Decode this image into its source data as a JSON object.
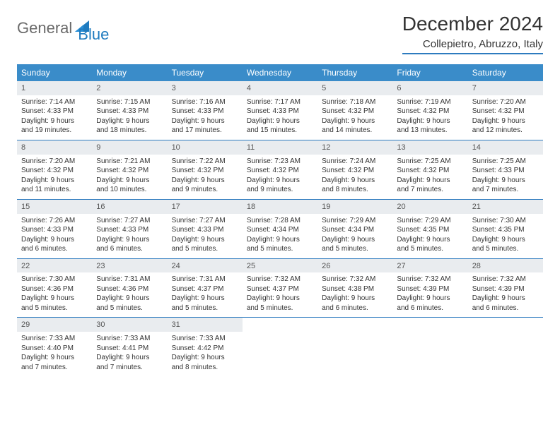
{
  "logo": {
    "text1": "General",
    "text2": "Blue"
  },
  "calendar": {
    "title": "December 2024",
    "location": "Collepietro, Abruzzo, Italy",
    "colors": {
      "header_bg": "#3a8cc9",
      "header_text": "#ffffff",
      "daynum_bg": "#e9ecef",
      "rule": "#2d7bbf",
      "body_text": "#333333"
    },
    "day_names": [
      "Sunday",
      "Monday",
      "Tuesday",
      "Wednesday",
      "Thursday",
      "Friday",
      "Saturday"
    ],
    "days": [
      {
        "n": "1",
        "sunrise": "Sunrise: 7:14 AM",
        "sunset": "Sunset: 4:33 PM",
        "d1": "Daylight: 9 hours",
        "d2": "and 19 minutes."
      },
      {
        "n": "2",
        "sunrise": "Sunrise: 7:15 AM",
        "sunset": "Sunset: 4:33 PM",
        "d1": "Daylight: 9 hours",
        "d2": "and 18 minutes."
      },
      {
        "n": "3",
        "sunrise": "Sunrise: 7:16 AM",
        "sunset": "Sunset: 4:33 PM",
        "d1": "Daylight: 9 hours",
        "d2": "and 17 minutes."
      },
      {
        "n": "4",
        "sunrise": "Sunrise: 7:17 AM",
        "sunset": "Sunset: 4:33 PM",
        "d1": "Daylight: 9 hours",
        "d2": "and 15 minutes."
      },
      {
        "n": "5",
        "sunrise": "Sunrise: 7:18 AM",
        "sunset": "Sunset: 4:32 PM",
        "d1": "Daylight: 9 hours",
        "d2": "and 14 minutes."
      },
      {
        "n": "6",
        "sunrise": "Sunrise: 7:19 AM",
        "sunset": "Sunset: 4:32 PM",
        "d1": "Daylight: 9 hours",
        "d2": "and 13 minutes."
      },
      {
        "n": "7",
        "sunrise": "Sunrise: 7:20 AM",
        "sunset": "Sunset: 4:32 PM",
        "d1": "Daylight: 9 hours",
        "d2": "and 12 minutes."
      },
      {
        "n": "8",
        "sunrise": "Sunrise: 7:20 AM",
        "sunset": "Sunset: 4:32 PM",
        "d1": "Daylight: 9 hours",
        "d2": "and 11 minutes."
      },
      {
        "n": "9",
        "sunrise": "Sunrise: 7:21 AM",
        "sunset": "Sunset: 4:32 PM",
        "d1": "Daylight: 9 hours",
        "d2": "and 10 minutes."
      },
      {
        "n": "10",
        "sunrise": "Sunrise: 7:22 AM",
        "sunset": "Sunset: 4:32 PM",
        "d1": "Daylight: 9 hours",
        "d2": "and 9 minutes."
      },
      {
        "n": "11",
        "sunrise": "Sunrise: 7:23 AM",
        "sunset": "Sunset: 4:32 PM",
        "d1": "Daylight: 9 hours",
        "d2": "and 9 minutes."
      },
      {
        "n": "12",
        "sunrise": "Sunrise: 7:24 AM",
        "sunset": "Sunset: 4:32 PM",
        "d1": "Daylight: 9 hours",
        "d2": "and 8 minutes."
      },
      {
        "n": "13",
        "sunrise": "Sunrise: 7:25 AM",
        "sunset": "Sunset: 4:32 PM",
        "d1": "Daylight: 9 hours",
        "d2": "and 7 minutes."
      },
      {
        "n": "14",
        "sunrise": "Sunrise: 7:25 AM",
        "sunset": "Sunset: 4:33 PM",
        "d1": "Daylight: 9 hours",
        "d2": "and 7 minutes."
      },
      {
        "n": "15",
        "sunrise": "Sunrise: 7:26 AM",
        "sunset": "Sunset: 4:33 PM",
        "d1": "Daylight: 9 hours",
        "d2": "and 6 minutes."
      },
      {
        "n": "16",
        "sunrise": "Sunrise: 7:27 AM",
        "sunset": "Sunset: 4:33 PM",
        "d1": "Daylight: 9 hours",
        "d2": "and 6 minutes."
      },
      {
        "n": "17",
        "sunrise": "Sunrise: 7:27 AM",
        "sunset": "Sunset: 4:33 PM",
        "d1": "Daylight: 9 hours",
        "d2": "and 5 minutes."
      },
      {
        "n": "18",
        "sunrise": "Sunrise: 7:28 AM",
        "sunset": "Sunset: 4:34 PM",
        "d1": "Daylight: 9 hours",
        "d2": "and 5 minutes."
      },
      {
        "n": "19",
        "sunrise": "Sunrise: 7:29 AM",
        "sunset": "Sunset: 4:34 PM",
        "d1": "Daylight: 9 hours",
        "d2": "and 5 minutes."
      },
      {
        "n": "20",
        "sunrise": "Sunrise: 7:29 AM",
        "sunset": "Sunset: 4:35 PM",
        "d1": "Daylight: 9 hours",
        "d2": "and 5 minutes."
      },
      {
        "n": "21",
        "sunrise": "Sunrise: 7:30 AM",
        "sunset": "Sunset: 4:35 PM",
        "d1": "Daylight: 9 hours",
        "d2": "and 5 minutes."
      },
      {
        "n": "22",
        "sunrise": "Sunrise: 7:30 AM",
        "sunset": "Sunset: 4:36 PM",
        "d1": "Daylight: 9 hours",
        "d2": "and 5 minutes."
      },
      {
        "n": "23",
        "sunrise": "Sunrise: 7:31 AM",
        "sunset": "Sunset: 4:36 PM",
        "d1": "Daylight: 9 hours",
        "d2": "and 5 minutes."
      },
      {
        "n": "24",
        "sunrise": "Sunrise: 7:31 AM",
        "sunset": "Sunset: 4:37 PM",
        "d1": "Daylight: 9 hours",
        "d2": "and 5 minutes."
      },
      {
        "n": "25",
        "sunrise": "Sunrise: 7:32 AM",
        "sunset": "Sunset: 4:37 PM",
        "d1": "Daylight: 9 hours",
        "d2": "and 5 minutes."
      },
      {
        "n": "26",
        "sunrise": "Sunrise: 7:32 AM",
        "sunset": "Sunset: 4:38 PM",
        "d1": "Daylight: 9 hours",
        "d2": "and 6 minutes."
      },
      {
        "n": "27",
        "sunrise": "Sunrise: 7:32 AM",
        "sunset": "Sunset: 4:39 PM",
        "d1": "Daylight: 9 hours",
        "d2": "and 6 minutes."
      },
      {
        "n": "28",
        "sunrise": "Sunrise: 7:32 AM",
        "sunset": "Sunset: 4:39 PM",
        "d1": "Daylight: 9 hours",
        "d2": "and 6 minutes."
      },
      {
        "n": "29",
        "sunrise": "Sunrise: 7:33 AM",
        "sunset": "Sunset: 4:40 PM",
        "d1": "Daylight: 9 hours",
        "d2": "and 7 minutes."
      },
      {
        "n": "30",
        "sunrise": "Sunrise: 7:33 AM",
        "sunset": "Sunset: 4:41 PM",
        "d1": "Daylight: 9 hours",
        "d2": "and 7 minutes."
      },
      {
        "n": "31",
        "sunrise": "Sunrise: 7:33 AM",
        "sunset": "Sunset: 4:42 PM",
        "d1": "Daylight: 9 hours",
        "d2": "and 8 minutes."
      }
    ]
  }
}
